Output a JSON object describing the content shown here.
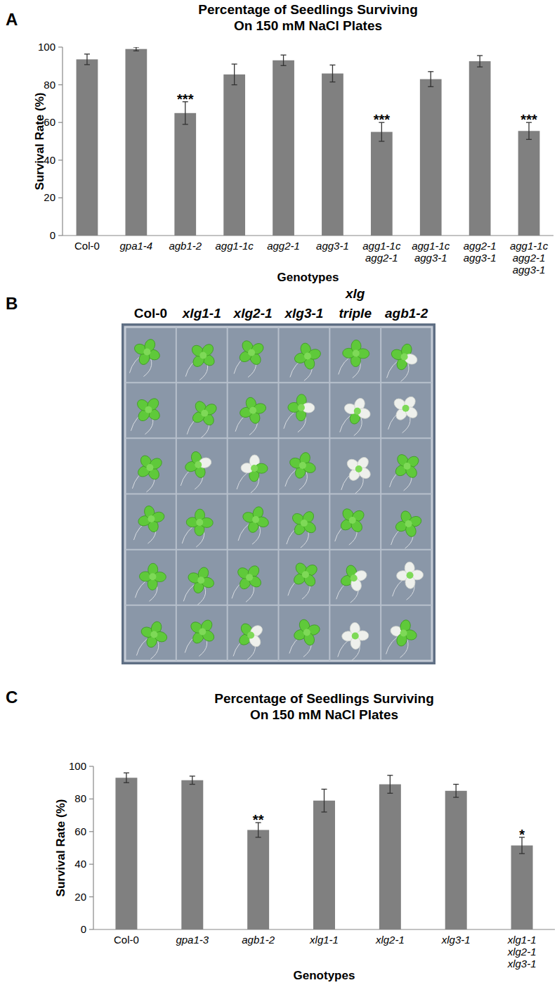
{
  "chart_data": [
    {
      "type": "bar",
      "panel": "A",
      "title": "Percentage of Seedlings Surviving",
      "subtitle": "On 150 mM NaCl Plates",
      "x_label": "Genotypes",
      "y_label": "Survival Rate (%)",
      "categories": [
        "Col-0",
        "gpa1-4",
        "agb1-2",
        "agg1-1c",
        "agg2-1",
        "agg3-1",
        "agg1-1c\nagg2-1",
        "agg1-1c\nagg3-1",
        "agg2-1\nagg3-1",
        "agg1-1c\nagg2-1\nagg3-1"
      ],
      "values": [
        93.5,
        99,
        65,
        85.5,
        93,
        86,
        55,
        83,
        92.5,
        55.5
      ],
      "errors": [
        2.8,
        1,
        6,
        5.5,
        2.8,
        4.5,
        5,
        4,
        3,
        4.5
      ],
      "significance": [
        null,
        null,
        "***",
        null,
        null,
        null,
        "***",
        null,
        null,
        "***"
      ],
      "color": "#808080",
      "ylim": [
        0,
        100
      ],
      "yticks": [
        0,
        20,
        40,
        60,
        80,
        100
      ],
      "grid": false
    },
    {
      "type": "bar",
      "panel": "C",
      "title": "Percentage of Seedlings Surviving",
      "subtitle": "On 150 mM NaCl Plates",
      "x_label": "Genotypes",
      "y_label": "Survival Rate (%)",
      "categories": [
        "Col-0",
        "gpa1-3",
        "agb1-2",
        "xlg1-1",
        "xlg2-1",
        "xlg3-1",
        "xlg1-1\nxlg2-1\nxlg3-1"
      ],
      "values": [
        93,
        91.5,
        61,
        79,
        89,
        85,
        51.5
      ],
      "errors": [
        3,
        2.5,
        4.5,
        7,
        5.5,
        4,
        5
      ],
      "significance": [
        null,
        null,
        "**",
        null,
        null,
        null,
        "*"
      ],
      "color": "#808080",
      "ylim": [
        0,
        100
      ],
      "yticks": [
        0,
        20,
        40,
        60,
        80,
        100
      ],
      "grid": false
    }
  ],
  "photo": {
    "panel": "B",
    "columns": [
      "Col-0",
      "xlg1-1",
      "xlg2-1",
      "xlg3-1",
      "xlg\ntriple",
      "agb1-2"
    ]
  }
}
